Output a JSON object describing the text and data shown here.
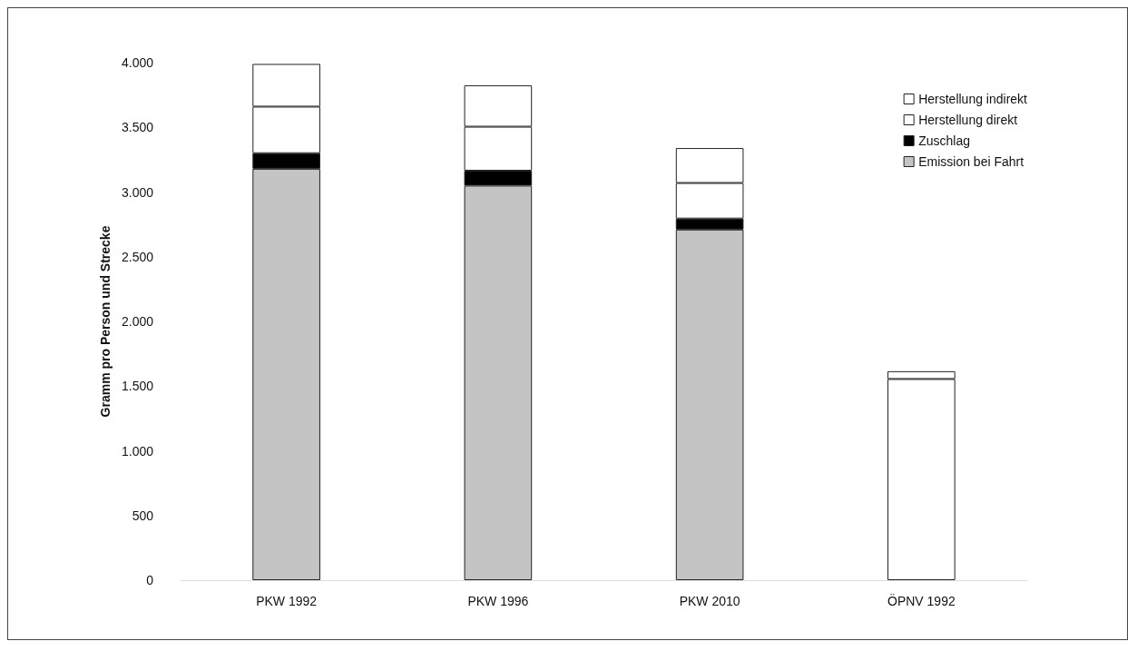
{
  "chart_data": {
    "type": "bar",
    "stacked": true,
    "ylabel": "Gramm pro Person und Strecke",
    "categories": [
      "PKW 1992",
      "PKW 1996",
      "PKW 2010",
      "ÖPNV 1992"
    ],
    "series": [
      {
        "name": "Emission bei Fahrt",
        "color": "#c4c4c4",
        "colors": [
          "#c4c4c4",
          "#c4c4c4",
          "#c4c4c4",
          "#ffffff"
        ],
        "values": [
          3180,
          3050,
          2710,
          1555
        ]
      },
      {
        "name": "Zuschlag",
        "color": "#000000",
        "values": [
          120,
          115,
          85,
          null
        ]
      },
      {
        "name": "Herstellung direkt",
        "color": "#ffffff",
        "values": [
          360,
          340,
          275,
          null
        ]
      },
      {
        "name": "Herstellung indirekt",
        "color": "#ffffff",
        "values": [
          330,
          320,
          270,
          60
        ]
      }
    ],
    "ylim": [
      0,
      4000
    ],
    "yticks": [
      {
        "value": 0,
        "label": "0"
      },
      {
        "value": 500,
        "label": "500"
      },
      {
        "value": 1000,
        "label": "1.000"
      },
      {
        "value": 1500,
        "label": "1.500"
      },
      {
        "value": 2000,
        "label": "2.000"
      },
      {
        "value": 2500,
        "label": "2.500"
      },
      {
        "value": 3000,
        "label": "3.000"
      },
      {
        "value": 3500,
        "label": "3.500"
      },
      {
        "value": 4000,
        "label": "4.000"
      }
    ],
    "grid": false,
    "legend": "top right"
  }
}
